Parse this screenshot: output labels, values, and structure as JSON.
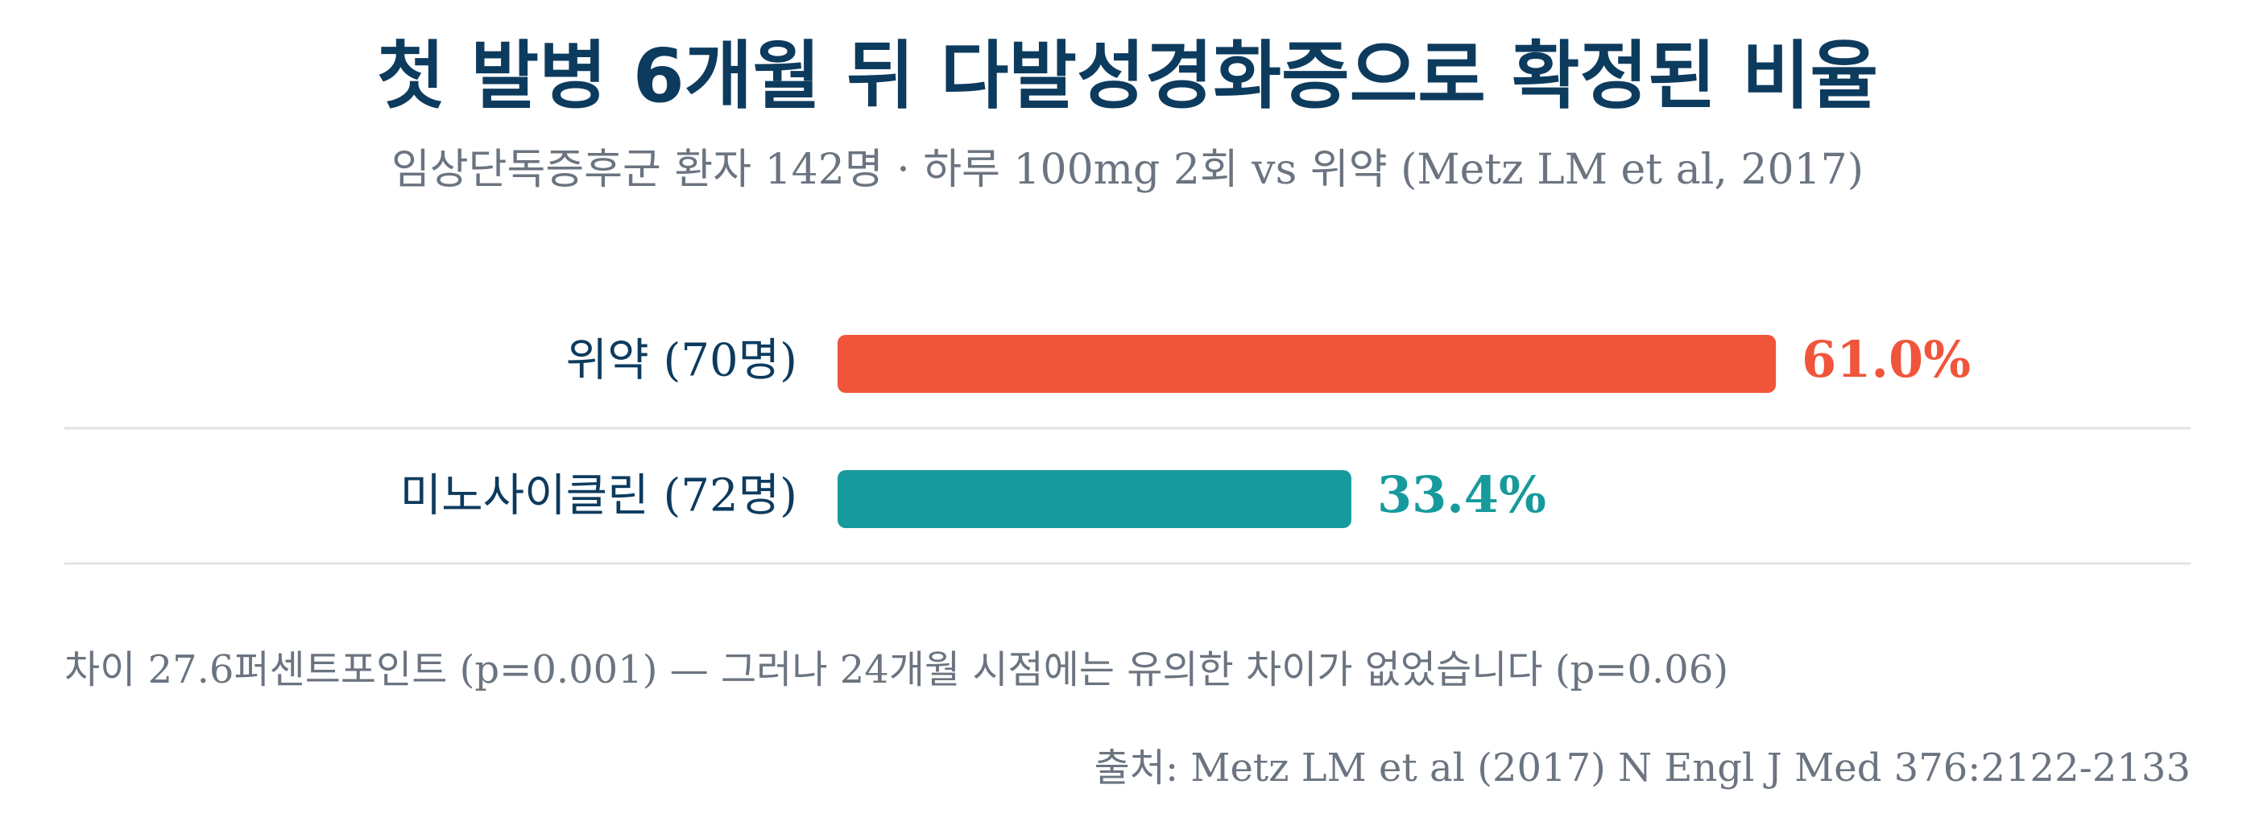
{
  "chart_data": {
    "type": "bar",
    "orientation": "horizontal",
    "title": "첫 발병 6개월 뒤 다발성경화증으로 확정된 비율",
    "subtitle": "임상단독증후군 환자 142명 · 하루 100mg 2회 vs 위약 (Metz LM et al, 2017)",
    "categories": [
      "위약 (70명)",
      "미노사이클린 (72명)"
    ],
    "values": [
      61.0,
      33.4
    ],
    "value_labels": [
      "61.0%",
      "33.4%"
    ],
    "colors": [
      "#f0553b",
      "#179a9c"
    ],
    "xlim": [
      0,
      100
    ],
    "grid": false,
    "legend": "none"
  },
  "footnote": "차이 27.6퍼센트포인트 (p=0.001) — 그러나 24개월 시점에는 유의한 차이가 없었습니다 (p=0.06)",
  "source": "출처: Metz LM et al (2017) N Engl J Med 376:2122-2133",
  "colors": {
    "title": "#0d3b5e",
    "muted_text": "#6b7480",
    "divider": "#e3e3e3"
  }
}
